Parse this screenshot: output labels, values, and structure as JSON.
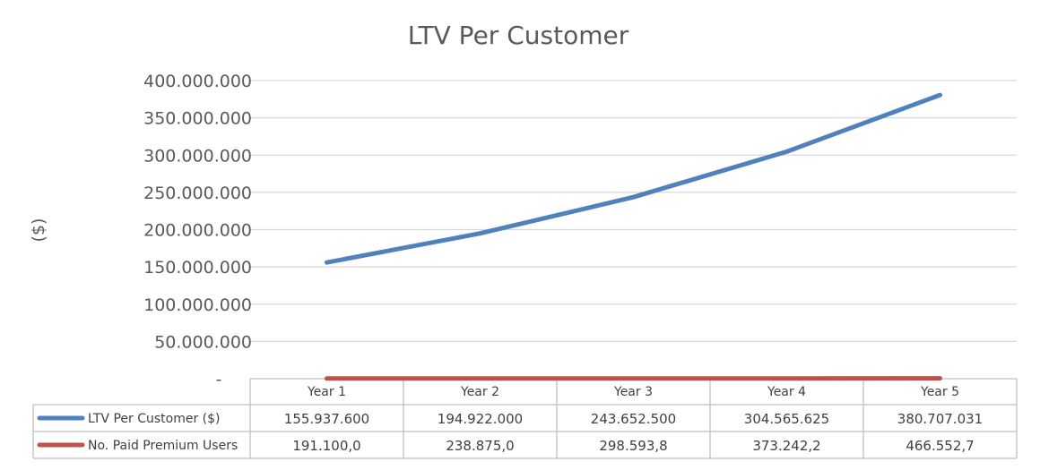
{
  "chart_data": {
    "type": "line",
    "title": "LTV Per Customer",
    "ylabel": "($)",
    "xlabel": "",
    "ylim": [
      0,
      400000000
    ],
    "ytick_labels": [
      "-",
      "50.000.000",
      "100.000.000",
      "150.000.000",
      "200.000.000",
      "250.000.000",
      "300.000.000",
      "350.000.000",
      "400.000.000"
    ],
    "grid": true,
    "data_table": true,
    "categories": [
      "Year 1",
      "Year 2",
      "Year 3",
      "Year 4",
      "Year 5"
    ],
    "series": [
      {
        "name": "LTV Per Customer ($)",
        "color": "#4f81bd",
        "values": [
          155937600,
          194922000,
          243652500,
          304565625,
          380707031
        ],
        "display": [
          "155.937.600",
          "194.922.000",
          "243.652.500",
          "304.565.625",
          "380.707.031"
        ]
      },
      {
        "name": "No. Paid Premium Users",
        "color": "#c0504d",
        "values": [
          191100.0,
          238875.0,
          298593.8,
          373242.2,
          466552.7
        ],
        "display": [
          "191.100,0",
          "238.875,0",
          "298.593,8",
          "373.242,2",
          "466.552,7"
        ]
      }
    ]
  }
}
